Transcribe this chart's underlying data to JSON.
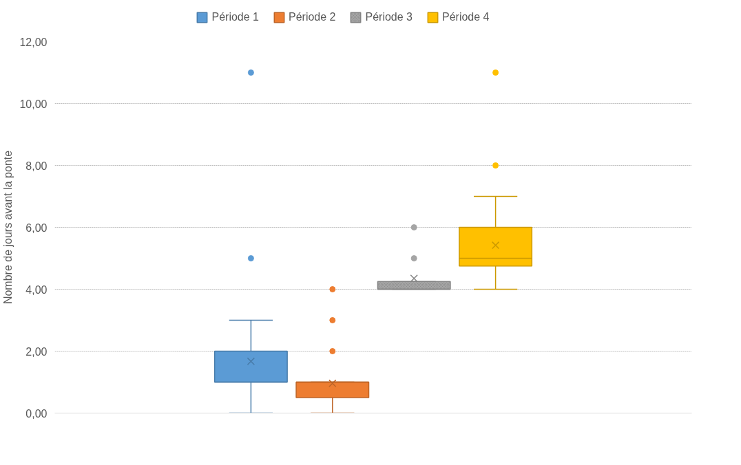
{
  "chart_data": {
    "type": "box",
    "ylabel": "Nombre de jours avant la ponte",
    "categories": [
      null
    ],
    "ylim": [
      0,
      12
    ],
    "yticks": [
      {
        "value": 0,
        "label": "0,00"
      },
      {
        "value": 2,
        "label": "2,00"
      },
      {
        "value": 4,
        "label": "4,00"
      },
      {
        "value": 6,
        "label": "6,00"
      },
      {
        "value": 8,
        "label": "8,00"
      },
      {
        "value": 10,
        "label": "10,00"
      },
      {
        "value": 12,
        "label": "12,00"
      }
    ],
    "grid": "y",
    "legend": "top",
    "tick_labels": "y",
    "series": [
      {
        "name": "Période 1",
        "color": "#5b9bd5",
        "boxes": [
          {
            "low": 0,
            "q1": 1,
            "median": 1,
            "q3": 2,
            "high": 3,
            "mean": 1.67,
            "outliers": [
              5,
              11
            ]
          }
        ]
      },
      {
        "name": "Période 2",
        "color": "#ed7d31",
        "boxes": [
          {
            "low": 0,
            "q1": 0.5,
            "median": 1,
            "q3": 1,
            "high": 1,
            "mean": 0.96,
            "outliers": [
              2,
              3,
              4
            ]
          }
        ]
      },
      {
        "name": "Période 3",
        "color": "#a5a5a5",
        "boxes": [
          {
            "low": 4,
            "q1": 4,
            "median": 4,
            "q3": 4.25,
            "high": 4.25,
            "mean": 4.35,
            "outliers": [
              5,
              6
            ]
          }
        ]
      },
      {
        "name": "Période 4",
        "color": "#ffc000",
        "boxes": [
          {
            "low": 4,
            "q1": 4.75,
            "median": 5,
            "q3": 6,
            "high": 7,
            "mean": 5.42,
            "outliers": [
              8,
              11
            ]
          }
        ]
      }
    ]
  }
}
